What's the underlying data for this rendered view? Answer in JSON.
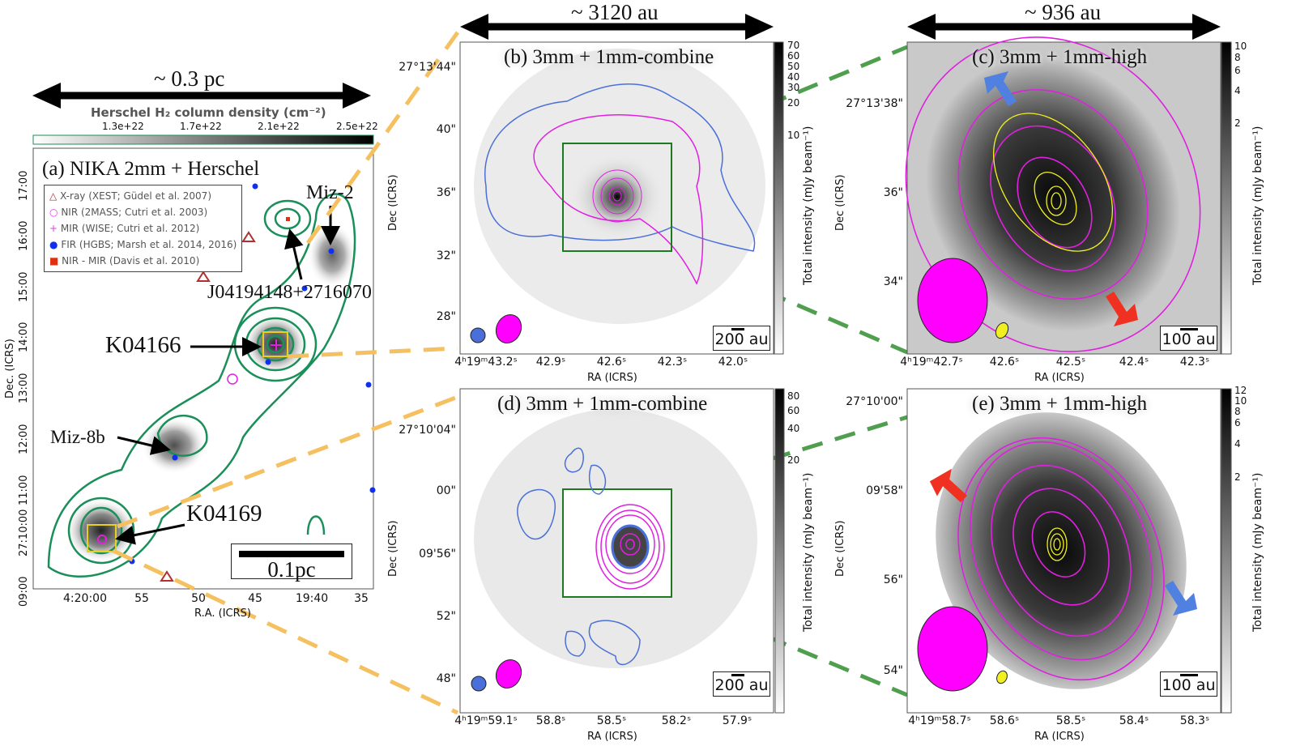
{
  "scale_arrows": {
    "a": "~ 0.3 pc",
    "b": "~ 3120 au",
    "c": "~ 936 au"
  },
  "panel_a": {
    "title": "(a) NIKA 2mm + Herschel",
    "colorbar_label": "Herschel H₂ column density (cm⁻²)",
    "colorbar_ticks": [
      "1.3e+22",
      "1.7e+22",
      "2.1e+22",
      "2.5e+22"
    ],
    "xlabel": "R.A. (ICRS)",
    "ylabel": "Dec. (ICRS)",
    "xticks": [
      "4:20:00",
      "55",
      "50",
      "45",
      "19:40",
      "35"
    ],
    "yticks": [
      "17:00",
      "16:00",
      "15:00",
      "14:00",
      "13:00",
      "12:00",
      "11:00",
      "27:10:00",
      "09:00"
    ],
    "legend": [
      {
        "marker": "triangle",
        "color": "#b03030",
        "text": "X-ray (XEST; Güdel et al. 2007)"
      },
      {
        "marker": "circle",
        "color": "#e040e0",
        "text": "NIR (2MASS; Cutri et al. 2003)"
      },
      {
        "marker": "plus",
        "color": "#e040e0",
        "text": "MIR (WISE; Cutri et al. 2012)"
      },
      {
        "marker": "dot",
        "color": "#1030f0",
        "text": "FIR (HGBS; Marsh et al. 2014, 2016)"
      },
      {
        "marker": "square",
        "color": "#e03010",
        "text": "NIR - MIR (Davis et al. 2010)"
      }
    ],
    "sources": {
      "miz2": "Miz-2",
      "j0419": "J04194148+2716070",
      "k04166": "K04166",
      "miz8b": "Miz-8b",
      "k04169": "K04169"
    },
    "scale_bar": "0.1pc",
    "contour_color": "#1a8f5a"
  },
  "panel_b": {
    "title": "(b) 3mm + 1mm-combine",
    "xlabel": "RA (ICRS)",
    "ylabel": "Dec (ICRS)",
    "xticks": [
      "4ʰ19ᵐ43.2ˢ",
      "42.9ˢ",
      "42.6ˢ",
      "42.3ˢ",
      "42.0ˢ"
    ],
    "yticks": [
      "27°13'44\"",
      "40\"",
      "36\"",
      "32\"",
      "28\""
    ],
    "colorbar_label": "Total intensity (mJy beam⁻¹)",
    "colorbar_ticks": [
      "70",
      "60",
      "50",
      "40",
      "30",
      "20",
      "10"
    ],
    "scale_bar": "200 au"
  },
  "panel_c": {
    "title": "(c) 3mm + 1mm-high",
    "xlabel": "RA (ICRS)",
    "ylabel": "Dec (ICRS)",
    "xticks": [
      "4ʰ19ᵐ42.7ˢ",
      "42.6ˢ",
      "42.5ˢ",
      "42.4ˢ",
      "42.3ˢ"
    ],
    "yticks": [
      "27°13'38\"",
      "36\"",
      "34\""
    ],
    "colorbar_label": "Total intensity (mJy beam⁻¹)",
    "colorbar_ticks": [
      "10",
      "8",
      "6",
      "4",
      "2"
    ],
    "scale_bar": "100 au"
  },
  "panel_d": {
    "title": "(d) 3mm + 1mm-combine",
    "xlabel": "RA (ICRS)",
    "ylabel": "Dec (ICRS)",
    "xticks": [
      "4ʰ19ᵐ59.1ˢ",
      "58.8ˢ",
      "58.5ˢ",
      "58.2ˢ",
      "57.9ˢ"
    ],
    "yticks": [
      "27°10'04\"",
      "00\"",
      "09'56\"",
      "52\"",
      "48\""
    ],
    "colorbar_label": "Total intensity (mJy beam⁻¹)",
    "colorbar_ticks": [
      "80",
      "60",
      "40",
      "20"
    ],
    "scale_bar": "200 au"
  },
  "panel_e": {
    "title": "(e) 3mm + 1mm-high",
    "xlabel": "RA (ICRS)",
    "ylabel": "Dec (ICRS)",
    "xticks": [
      "4ʰ19ᵐ58.7ˢ",
      "58.6ˢ",
      "58.5ˢ",
      "58.4ˢ",
      "58.3ˢ"
    ],
    "yticks": [
      "27°10'00\"",
      "09'58\"",
      "56\"",
      "54\""
    ],
    "colorbar_label": "Total intensity (mJy beam⁻¹)",
    "colorbar_ticks": [
      "12",
      "10",
      "8",
      "6",
      "4",
      "2"
    ],
    "scale_bar": "100 au"
  },
  "colors": {
    "blue_contour": "#4a6fd8",
    "magenta_contour": "#e020e0",
    "yellow_contour": "#f0f020",
    "zoom_box": "#1f7a1f",
    "dash_orange": "#f5c060",
    "dash_green": "#4f9f4f",
    "red_outflow": "#f03020",
    "blue_outflow": "#5080e0"
  }
}
